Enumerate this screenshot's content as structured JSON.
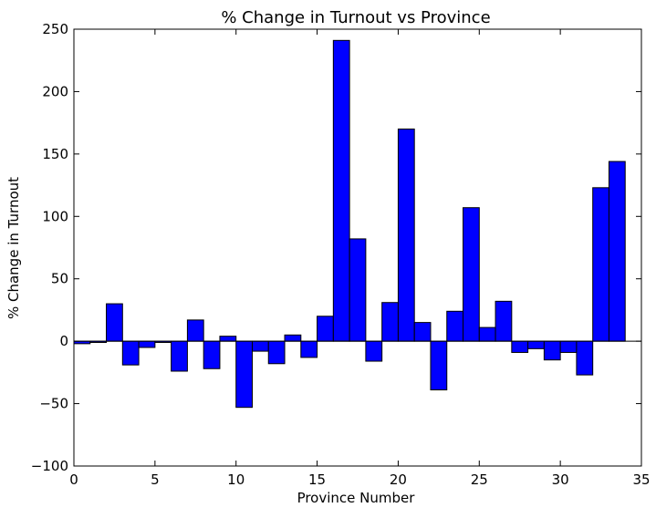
{
  "chart_data": {
    "type": "bar",
    "title": "% Change in Turnout vs Province",
    "xlabel": "Province Number",
    "ylabel": "% Change in Turnout",
    "xlim": [
      0,
      35
    ],
    "ylim": [
      -100,
      250
    ],
    "xticks": [
      0,
      5,
      10,
      15,
      20,
      25,
      30,
      35
    ],
    "yticks": [
      -100,
      -50,
      0,
      50,
      100,
      150,
      200,
      250
    ],
    "ytick_labels": [
      "−100",
      "−50",
      "0",
      "50",
      "100",
      "150",
      "200",
      "250"
    ],
    "grid": false,
    "bar_color": "#0000ff",
    "bar_edge_color": "#000000",
    "bar_width": 1,
    "series": [
      {
        "x": [
          0,
          1,
          2,
          3,
          4,
          5,
          6,
          7,
          8,
          9,
          10,
          11,
          12,
          13,
          14,
          15,
          16,
          17,
          18,
          19,
          20,
          21,
          22,
          23,
          24,
          25,
          26,
          27,
          28,
          29,
          30,
          31,
          32,
          33
        ],
        "values": [
          -2,
          -1,
          30,
          -19,
          -5,
          -1,
          -24,
          17,
          -22,
          4,
          -53,
          -8,
          -18,
          5,
          -13,
          20,
          241,
          82,
          -16,
          31,
          170,
          15,
          -39,
          24,
          107,
          11,
          32,
          -9,
          -6,
          -15,
          -9,
          -27,
          123,
          144
        ]
      }
    ]
  }
}
